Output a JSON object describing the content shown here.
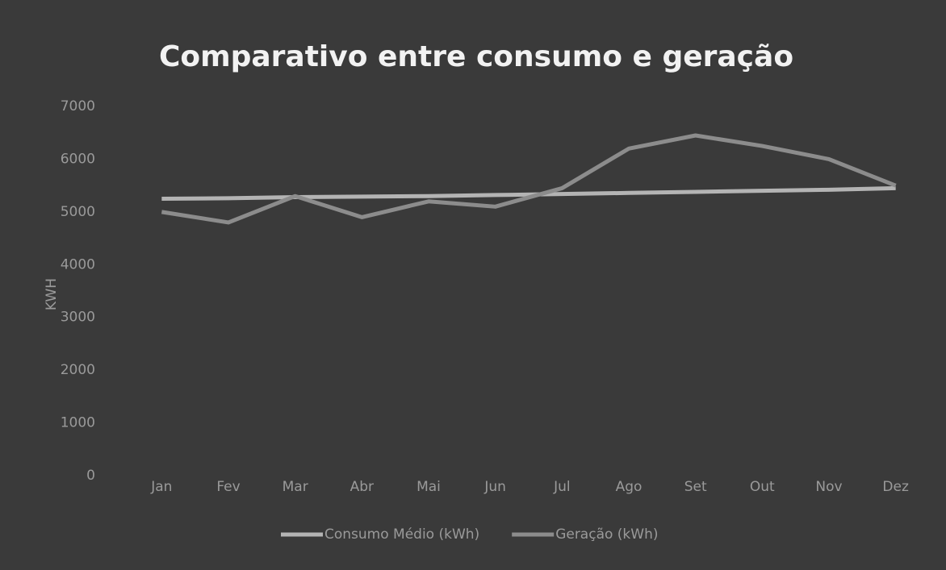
{
  "chart_data": {
    "type": "line",
    "title": "Comparativo entre consumo e geração",
    "y_label": "KWH",
    "categories": [
      "Jan",
      "Fev",
      "Mar",
      "Abr",
      "Mai",
      "Jun",
      "Jul",
      "Ago",
      "Set",
      "Out",
      "Nov",
      "Dez"
    ],
    "series": [
      {
        "name": "Consumo Médio (kWh)",
        "color": "#b4b4b4",
        "values": [
          5250,
          5260,
          5280,
          5290,
          5300,
          5320,
          5340,
          5360,
          5380,
          5400,
          5420,
          5450
        ]
      },
      {
        "name": "Geração (kWh)",
        "color": "#8c8c8c",
        "values": [
          5000,
          4800,
          5300,
          4900,
          5200,
          5100,
          5450,
          6200,
          6450,
          6250,
          6000,
          5500
        ]
      }
    ],
    "ylim": [
      0,
      7000
    ],
    "yticks": [
      0,
      1000,
      2000,
      3000,
      4000,
      5000,
      6000,
      7000
    ],
    "grid": false,
    "legend": "bottom"
  }
}
